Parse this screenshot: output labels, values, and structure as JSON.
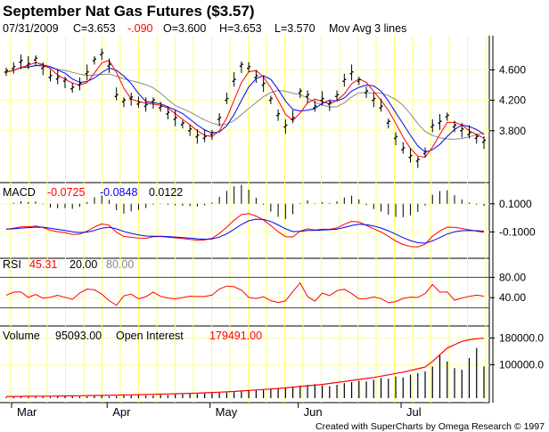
{
  "header": {
    "title": "September Nat Gas Futures ($3.57)",
    "date": "07/31/2009",
    "close": "C=3.653",
    "change": "-.090",
    "open": "O=3.600",
    "high": "H=3.653",
    "low": "L=3.570",
    "indicator": "Mov Avg 3 lines"
  },
  "macd_header": {
    "label": "MACD",
    "macd": "-0.0725",
    "signal": "-0.0848",
    "hist": "0.0122"
  },
  "rsi_header": {
    "label": "RSI",
    "value": "45.31",
    "lower": "20.00",
    "upper": "80.00"
  },
  "volume_header": {
    "vol_label": "Volume",
    "vol_value": "95093.00",
    "oi_label": "Open Interest",
    "oi_value": "179491.00"
  },
  "footer": {
    "credit": "Created with SuperCharts by Omega Research © 1997"
  },
  "colors": {
    "price": "#000000",
    "ma_fast": "#ff0000",
    "ma_mid": "#0000ff",
    "ma_slow": "#888888",
    "grid_v": "#ffff66",
    "grid_h": "#ffff99"
  },
  "chart_data": [
    {
      "type": "line",
      "panel": "price",
      "x_ticks": [
        "Mar",
        "Apr",
        "May",
        "Jun",
        "Jul"
      ],
      "y_ticks": [
        4.6,
        4.2,
        3.8
      ],
      "y_tick_labels": [
        "4.600",
        "4.200",
        "3.800"
      ],
      "ylim": [
        3.2,
        5.05
      ],
      "series": [
        {
          "values": [
            4.57,
            4.62,
            4.7,
            4.66,
            4.73,
            4.62,
            4.5,
            4.48,
            4.45,
            4.35,
            4.4,
            4.55,
            4.72,
            4.8,
            4.65,
            4.25,
            4.18,
            4.22,
            4.15,
            4.12,
            4.18,
            4.1,
            4.02,
            3.95,
            3.88,
            3.8,
            3.72,
            3.7,
            3.75,
            3.95,
            4.2,
            4.45,
            4.65,
            4.62,
            4.5,
            4.4,
            4.2,
            4.0,
            3.85,
            3.95,
            4.3,
            4.25,
            4.1,
            4.2,
            4.15,
            4.25,
            4.45,
            4.55,
            4.45,
            4.3,
            4.2,
            4.1,
            3.9,
            3.7,
            3.55,
            3.45,
            3.4,
            3.5,
            3.85,
            3.9,
            3.98,
            3.85,
            3.8,
            3.75,
            3.7,
            3.65
          ]
        }
      ]
    },
    {
      "type": "line",
      "panel": "macd",
      "y_ticks": [
        0.1,
        -0.1
      ],
      "y_tick_labels": [
        "0.1000",
        "-0.1000"
      ],
      "ylim": [
        -0.25,
        0.2
      ]
    },
    {
      "type": "line",
      "panel": "rsi",
      "y_ticks": [
        80,
        40
      ],
      "y_tick_labels": [
        "80.00",
        "40.00"
      ],
      "ylim": [
        0,
        100
      ]
    },
    {
      "type": "bar",
      "panel": "volume",
      "y_ticks": [
        180000,
        100000
      ],
      "y_tick_labels": [
        "180000.0",
        "100000.0"
      ],
      "ylim": [
        0,
        200000
      ],
      "series": [
        {
          "values": [
            5000,
            5200,
            5400,
            5600,
            5800,
            6000,
            6200,
            6400,
            6700,
            7000,
            7300,
            7600,
            8000,
            8400,
            8800,
            9200,
            9600,
            10000,
            10500,
            11000,
            11500,
            12000,
            12600,
            13200,
            13800,
            14400,
            15000,
            16000,
            17000,
            18000,
            19000,
            20000,
            21500,
            23000,
            24500,
            26000,
            27500,
            29000,
            31000,
            33000,
            35000,
            37000,
            39000,
            41000,
            44000,
            47000,
            50000,
            53000,
            56000,
            59000,
            62000,
            66000,
            70000,
            74000,
            78000,
            83000,
            88000,
            93000,
            110000,
            130000,
            150000,
            160000,
            170000,
            175000,
            178000,
            179491
          ]
        },
        {
          "values": [
            3000,
            3500,
            4000,
            3200,
            4500,
            5000,
            3800,
            4200,
            6000,
            5500,
            4800,
            5200,
            6500,
            7000,
            6000,
            5600,
            7500,
            8000,
            9000,
            7800,
            8500,
            10000,
            9500,
            11000,
            12000,
            13000,
            12500,
            14000,
            15000,
            16000,
            17000,
            18000,
            20000,
            22000,
            24000,
            26000,
            28000,
            30000,
            32000,
            35000,
            38000,
            40000,
            42000,
            38000,
            36000,
            40000,
            45000,
            48000,
            52000,
            50000,
            55000,
            60000,
            58000,
            65000,
            62000,
            70000,
            75000,
            80000,
            95000,
            130000,
            110000,
            90000,
            85000,
            120000,
            150000,
            95093
          ]
        }
      ]
    }
  ]
}
